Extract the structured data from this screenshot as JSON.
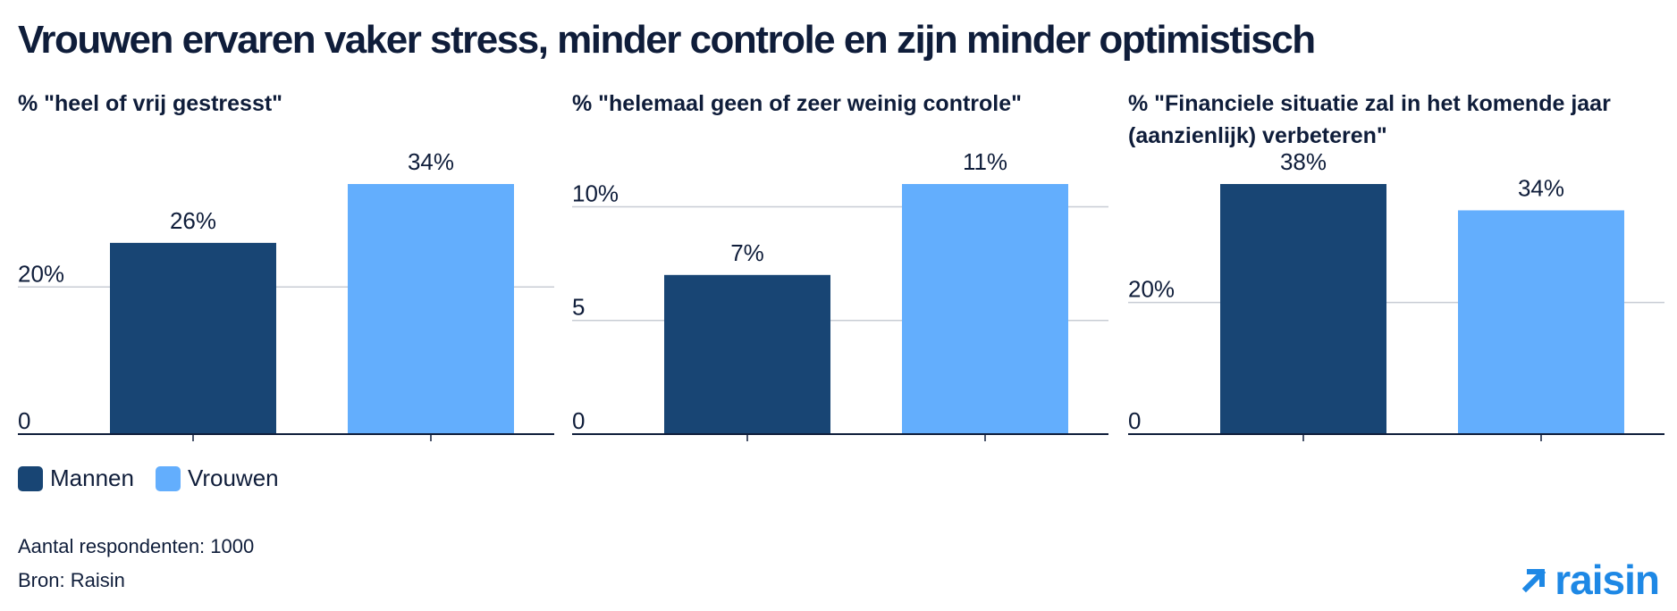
{
  "title": "Vrouwen ervaren vaker stress, minder controle en zijn minder optimistisch",
  "legend": [
    {
      "label": "Mannen",
      "color": "#184574"
    },
    {
      "label": "Vrouwen",
      "color": "#63aefd"
    }
  ],
  "footnotes": {
    "respondents": "Aantal respondenten: 1000",
    "source": "Bron: Raisin"
  },
  "logo": {
    "text": "raisin",
    "icon": "arrow-up-right-icon"
  },
  "chart_data": [
    {
      "type": "bar",
      "title": "% \"heel of vrij gestresst\"",
      "categories": [
        "Mannen",
        "Vrouwen"
      ],
      "values": [
        26,
        34
      ],
      "data_labels": [
        "26%",
        "34%"
      ],
      "yticks": [
        {
          "value": 0,
          "label": "0"
        },
        {
          "value": 20,
          "label": "20%"
        }
      ],
      "ylim": [
        0,
        34
      ],
      "xlabel": "",
      "ylabel": ""
    },
    {
      "type": "bar",
      "title": "% \"helemaal geen of zeer weinig controle\"",
      "categories": [
        "Mannen",
        "Vrouwen"
      ],
      "values": [
        7,
        11
      ],
      "data_labels": [
        "7%",
        "11%"
      ],
      "yticks": [
        {
          "value": 0,
          "label": "0"
        },
        {
          "value": 5,
          "label": "5"
        },
        {
          "value": 10,
          "label": "10%"
        }
      ],
      "ylim": [
        0,
        11
      ],
      "xlabel": "",
      "ylabel": ""
    },
    {
      "type": "bar",
      "title": "% \"Financiele situatie zal in het komende jaar (aanzienlijk) verbeteren\"",
      "categories": [
        "Mannen",
        "Vrouwen"
      ],
      "values": [
        38,
        34
      ],
      "data_labels": [
        "38%",
        "34%"
      ],
      "yticks": [
        {
          "value": 0,
          "label": "0"
        },
        {
          "value": 20,
          "label": "20%"
        }
      ],
      "ylim": [
        0,
        38
      ],
      "xlabel": "",
      "ylabel": ""
    }
  ]
}
